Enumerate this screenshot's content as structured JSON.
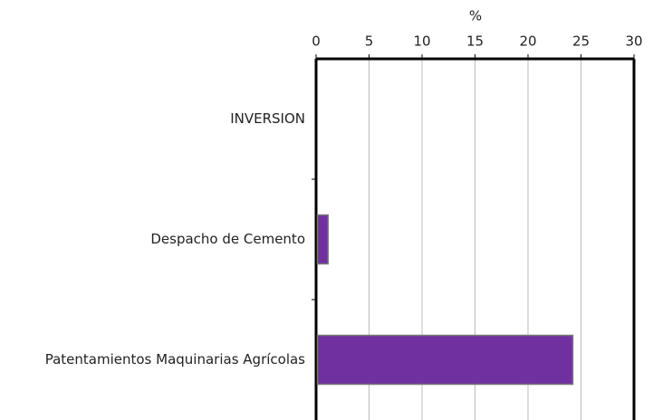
{
  "chart_data": {
    "type": "bar",
    "orientation": "horizontal",
    "x_label": "%",
    "categories": [
      "INVERSION",
      "Despacho de Cemento",
      "Patentamientos Maquinarias Agrícolas"
    ],
    "values": [
      null,
      1.0,
      24.1
    ],
    "color": "#7030a0",
    "xlim": [
      0,
      30
    ],
    "xticks": [
      0,
      5,
      10,
      15,
      20,
      25,
      30
    ],
    "grid": true
  }
}
